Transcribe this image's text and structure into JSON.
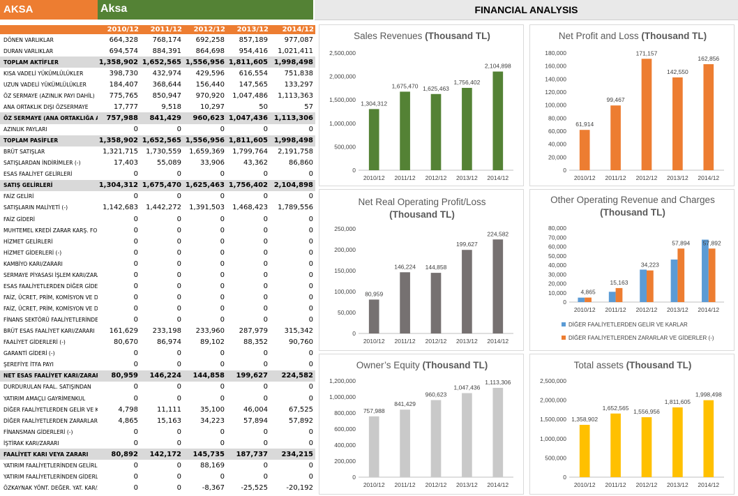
{
  "header": {
    "ticker": "AKSA",
    "company": "Aksa",
    "section_title": "FINANCIAL ANALYSIS"
  },
  "table": {
    "years": [
      "2010/12",
      "2011/12",
      "2012/12",
      "2013/12",
      "2014/12"
    ],
    "rows": [
      {
        "label": "DÖNEN VARLIKLAR",
        "values": [
          "664,328",
          "768,174",
          "692,258",
          "857,189",
          "977,087"
        ],
        "bold": false
      },
      {
        "label": "DURAN VARLIKLAR",
        "values": [
          "694,574",
          "884,391",
          "864,698",
          "954,416",
          "1,021,411"
        ],
        "bold": false
      },
      {
        "label": "TOPLAM AKTİFLER",
        "values": [
          "1,358,902",
          "1,652,565",
          "1,556,956",
          "1,811,605",
          "1,998,498"
        ],
        "bold": true
      },
      {
        "label": "KISA VADELİ YÜKÜMLÜLÜKLER",
        "values": [
          "398,730",
          "432,974",
          "429,596",
          "616,554",
          "751,838"
        ],
        "bold": false
      },
      {
        "label": "UZUN VADELİ YÜKÜMLÜLÜKLER",
        "values": [
          "184,407",
          "368,644",
          "156,440",
          "147,565",
          "133,297"
        ],
        "bold": false
      },
      {
        "label": "ÖZ SERMAYE (AZINLIK PAYI DAHİL)",
        "values": [
          "775,765",
          "850,947",
          "970,920",
          "1,047,486",
          "1,113,363"
        ],
        "bold": false
      },
      {
        "label": "ANA ORTAKLIK DIŞI ÖZSERMAYE",
        "values": [
          "17,777",
          "9,518",
          "10,297",
          "50",
          "57"
        ],
        "bold": false
      },
      {
        "label": "ÖZ SERMAYE (ANA ORTAKLIĞA AİT)",
        "values": [
          "757,988",
          "841,429",
          "960,623",
          "1,047,436",
          "1,113,306"
        ],
        "bold": true
      },
      {
        "label": "AZINLIK PAYLARI",
        "values": [
          "0",
          "0",
          "0",
          "0",
          "0"
        ],
        "bold": false
      },
      {
        "label": "TOPLAM PASİFLER",
        "values": [
          "1,358,902",
          "1,652,565",
          "1,556,956",
          "1,811,605",
          "1,998,498"
        ],
        "bold": true
      },
      {
        "label": "BRÜT SATIŞLAR",
        "values": [
          "1,321,715",
          "1,730,559",
          "1,659,369",
          "1,799,764",
          "2,191,758"
        ],
        "bold": false
      },
      {
        "label": "SATIŞLARDAN İNDİRİMLER (-)",
        "values": [
          "17,403",
          "55,089",
          "33,906",
          "43,362",
          "86,860"
        ],
        "bold": false
      },
      {
        "label": "ESAS FAALİYET GELİRLERİ",
        "values": [
          "0",
          "0",
          "0",
          "0",
          "0"
        ],
        "bold": false
      },
      {
        "label": "SATIŞ GELİRLERİ",
        "values": [
          "1,304,312",
          "1,675,470",
          "1,625,463",
          "1,756,402",
          "2,104,898"
        ],
        "bold": true
      },
      {
        "label": "FAİZ GELİRİ",
        "values": [
          "0",
          "0",
          "0",
          "0",
          "0"
        ],
        "bold": false
      },
      {
        "label": "SATIŞLARIN MALİYETİ (-)",
        "values": [
          "1,142,683",
          "1,442,272",
          "1,391,503",
          "1,468,423",
          "1,789,556"
        ],
        "bold": false
      },
      {
        "label": "FAİZ GİDERİ",
        "values": [
          "0",
          "0",
          "0",
          "0",
          "0"
        ],
        "bold": false
      },
      {
        "label": "MUHTEMEL KREDİ ZARAR KARŞ. FONU",
        "values": [
          "0",
          "0",
          "0",
          "0",
          "0"
        ],
        "bold": false
      },
      {
        "label": "HİZMET GELİRLERİ",
        "values": [
          "0",
          "0",
          "0",
          "0",
          "0"
        ],
        "bold": false
      },
      {
        "label": "HİZMET GİDERLERİ (-)",
        "values": [
          "0",
          "0",
          "0",
          "0",
          "0"
        ],
        "bold": false
      },
      {
        "label": "KAMBİYO KARI/ZARARI",
        "values": [
          "0",
          "0",
          "0",
          "0",
          "0"
        ],
        "bold": false
      },
      {
        "label": "SERMAYE PİYASASI İŞLEM KARI/ZARARI",
        "values": [
          "0",
          "0",
          "0",
          "0",
          "0"
        ],
        "bold": false
      },
      {
        "label": "ESAS FAALİYETLERDEN DİĞER GİDERLER",
        "values": [
          "0",
          "0",
          "0",
          "0",
          "0"
        ],
        "bold": false
      },
      {
        "label": "FAİZ, ÜCRET, PRİM, KOMİSYON VE DİĞER GELİRLER",
        "values": [
          "0",
          "0",
          "0",
          "0",
          "0"
        ],
        "bold": false
      },
      {
        "label": "FAİZ, ÜCRET, PRİM, KOMİSYON VE DİĞER GİDERLER",
        "values": [
          "0",
          "0",
          "0",
          "0",
          "0"
        ],
        "bold": false
      },
      {
        "label": "FİNANS SEKTÖRÜ FAALİYETLERİNDEN",
        "values": [
          "0",
          "0",
          "0",
          "0",
          "0"
        ],
        "bold": false
      },
      {
        "label": "BRÜT ESAS FAALİYET KARI/ZARARI",
        "values": [
          "161,629",
          "233,198",
          "233,960",
          "287,979",
          "315,342"
        ],
        "bold": false
      },
      {
        "label": "FAALİYET GİDERLERİ (-)",
        "values": [
          "80,670",
          "86,974",
          "89,102",
          "88,352",
          "90,760"
        ],
        "bold": false
      },
      {
        "label": "GARANTİ GİDERİ (-)",
        "values": [
          "0",
          "0",
          "0",
          "0",
          "0"
        ],
        "bold": false
      },
      {
        "label": "ŞEREFİYE İTFA PAYI",
        "values": [
          "0",
          "0",
          "0",
          "0",
          "0"
        ],
        "bold": false
      },
      {
        "label": "NET ESAS FAALİYET KARI/ZARARI",
        "values": [
          "80,959",
          "146,224",
          "144,858",
          "199,627",
          "224,582"
        ],
        "bold": true
      },
      {
        "label": "DURDURULAN FAAL. SATIŞINDAN",
        "values": [
          "0",
          "0",
          "0",
          "0",
          "0"
        ],
        "bold": false
      },
      {
        "label": "YATIRIM AMAÇLI GAYRİMENKUL",
        "values": [
          "0",
          "0",
          "0",
          "0",
          "0"
        ],
        "bold": false
      },
      {
        "label": "DİĞER FAALİYETLERDEN GELİR VE KARLAR",
        "values": [
          "4,798",
          "11,111",
          "35,100",
          "46,004",
          "67,525"
        ],
        "bold": false
      },
      {
        "label": "DİĞER FAALİYETLERDEN ZARARLAR VE GİDERLER",
        "values": [
          "4,865",
          "15,163",
          "34,223",
          "57,894",
          "57,892"
        ],
        "bold": false
      },
      {
        "label": "FİNANSMAN GİDERLERİ (-)",
        "values": [
          "0",
          "0",
          "0",
          "0",
          "0"
        ],
        "bold": false
      },
      {
        "label": "İŞTİRAK KARI/ZARARI",
        "values": [
          "0",
          "0",
          "0",
          "0",
          "0"
        ],
        "bold": false
      },
      {
        "label": "FAALİYET KARI VEYA ZARARI",
        "values": [
          "80,892",
          "142,172",
          "145,735",
          "187,737",
          "234,215"
        ],
        "bold": true
      },
      {
        "label": "YATIRIM FAALİYETLERİNDEN GELİRLER",
        "values": [
          "0",
          "0",
          "88,169",
          "0",
          "0"
        ],
        "bold": false
      },
      {
        "label": "YATIRIM FAALİYETLERİNDEN GİDERLER",
        "values": [
          "0",
          "0",
          "0",
          "0",
          "0"
        ],
        "bold": false
      },
      {
        "label": "ÖZKAYNAK YÖNT. DEĞER. YAT. KAR/ZARAR",
        "values": [
          "0",
          "0",
          "-8,367",
          "-25,525",
          "-20,192"
        ],
        "bold": false
      }
    ]
  },
  "chart_data": [
    {
      "id": "sales",
      "type": "bar",
      "title": "Sales Revenues",
      "title_bold": "(Thousand TL)",
      "categories": [
        "2010/12",
        "2011/12",
        "2012/12",
        "2013/12",
        "2014/12"
      ],
      "series": [
        {
          "values": [
            1304312,
            1675470,
            1625463,
            1756402,
            2104898
          ],
          "color": "#548235"
        }
      ],
      "labels": [
        "1,304,312",
        "1,675,470",
        "1,625,463",
        "1,756,402",
        "2,104,898"
      ],
      "ylim": [
        0,
        2500000
      ],
      "yticks": [
        0,
        500000,
        1000000,
        1500000,
        2000000,
        2500000
      ],
      "ytick_labels": [
        "0",
        "500,000",
        "1,000,000",
        "1,500,000",
        "2,000,000",
        "2,500,000"
      ],
      "legend": []
    },
    {
      "id": "netprofit",
      "type": "bar",
      "title": "Net Profit and Loss",
      "title_bold": "(Thousand TL)",
      "categories": [
        "2010/12",
        "2011/12",
        "2012/12",
        "2013/12",
        "2014/12"
      ],
      "series": [
        {
          "values": [
            61914,
            99467,
            171157,
            142550,
            162856
          ],
          "color": "#ed7d31"
        }
      ],
      "labels": [
        "61,914",
        "99,467",
        "171,157",
        "142,550",
        "162,856"
      ],
      "ylim": [
        0,
        180000
      ],
      "yticks": [
        0,
        20000,
        40000,
        60000,
        80000,
        100000,
        120000,
        140000,
        160000,
        180000
      ],
      "ytick_labels": [
        "0",
        "20,000",
        "40,000",
        "60,000",
        "80,000",
        "100,000",
        "120,000",
        "140,000",
        "160,000",
        "180,000"
      ],
      "legend": []
    },
    {
      "id": "operating",
      "type": "bar",
      "title": "Net Real Operating Profit/Loss",
      "title_bold": "(Thousand TL)",
      "categories": [
        "2010/12",
        "2011/12",
        "2012/12",
        "2013/12",
        "2014/12"
      ],
      "series": [
        {
          "values": [
            80959,
            146224,
            144858,
            199627,
            224582
          ],
          "color": "#767171"
        }
      ],
      "labels": [
        "80,959",
        "146,224",
        "144,858",
        "199,627",
        "224,582"
      ],
      "ylim": [
        0,
        250000
      ],
      "yticks": [
        0,
        50000,
        100000,
        150000,
        200000,
        250000
      ],
      "ytick_labels": [
        "0",
        "50,000",
        "100,000",
        "150,000",
        "200,000",
        "250,000"
      ],
      "legend": []
    },
    {
      "id": "other",
      "type": "bar",
      "title": "Other Operating Revenue and Charges",
      "title_bold": "(Thousand TL)",
      "categories": [
        "2010/12",
        "2011/12",
        "2012/12",
        "2013/12",
        "2014/12"
      ],
      "series": [
        {
          "name": "DİĞER FAALİYETLERDEN GELİR VE KARLAR",
          "values": [
            4798,
            11111,
            35100,
            46004,
            67525
          ],
          "color": "#5b9bd5"
        },
        {
          "name": "DİĞER FAALİYETLERDEN ZARARLAR VE GİDERLER (-)",
          "values": [
            4865,
            15163,
            34223,
            57894,
            57892
          ],
          "color": "#ed7d31"
        }
      ],
      "labels": [
        "4,865",
        "15,163",
        "34,223",
        "57,894",
        "57,892"
      ],
      "ylim": [
        0,
        80000
      ],
      "yticks": [
        0,
        10000,
        20000,
        30000,
        40000,
        50000,
        60000,
        70000,
        80000
      ],
      "ytick_labels": [
        "0",
        "10,000",
        "20,000",
        "30,000",
        "40,000",
        "50,000",
        "60,000",
        "70,000",
        "80,000"
      ],
      "legend": [
        "DİĞER FAALİYETLERDEN GELİR VE KARLAR",
        "DİĞER FAALİYETLERDEN ZARARLAR VE GİDERLER (-)"
      ]
    },
    {
      "id": "equity",
      "type": "bar",
      "title": "Owner’s Equity",
      "title_bold": "(Thousand TL)",
      "categories": [
        "2010/12",
        "2011/12",
        "2012/12",
        "2013/12",
        "2014/12"
      ],
      "series": [
        {
          "values": [
            757988,
            841429,
            960623,
            1047436,
            1113306
          ],
          "color": "#c9c9c9"
        }
      ],
      "labels": [
        "757,988",
        "841,429",
        "960,623",
        "1,047,436",
        "1,113,306"
      ],
      "ylim": [
        0,
        1200000
      ],
      "yticks": [
        0,
        200000,
        400000,
        600000,
        800000,
        1000000,
        1200000
      ],
      "ytick_labels": [
        "0",
        "200,000",
        "400,000",
        "600,000",
        "800,000",
        "1,000,000",
        "1,200,000"
      ],
      "legend": []
    },
    {
      "id": "assets",
      "type": "bar",
      "title": "Total assets",
      "title_bold": "(Thousand TL)",
      "categories": [
        "2010/12",
        "2011/12",
        "2012/12",
        "2013/12",
        "2014/12"
      ],
      "series": [
        {
          "values": [
            1358902,
            1652565,
            1556956,
            1811605,
            1998498
          ],
          "color": "#ffc000"
        }
      ],
      "labels": [
        "1,358,902",
        "1,652,565",
        "1,556,956",
        "1,811,605",
        "1,998,498"
      ],
      "ylim": [
        0,
        2500000
      ],
      "yticks": [
        0,
        500000,
        1000000,
        1500000,
        2000000,
        2500000
      ],
      "ytick_labels": [
        "0",
        "500,000",
        "1,000,000",
        "1,500,000",
        "2,000,000",
        "2,500,000"
      ],
      "legend": []
    }
  ]
}
